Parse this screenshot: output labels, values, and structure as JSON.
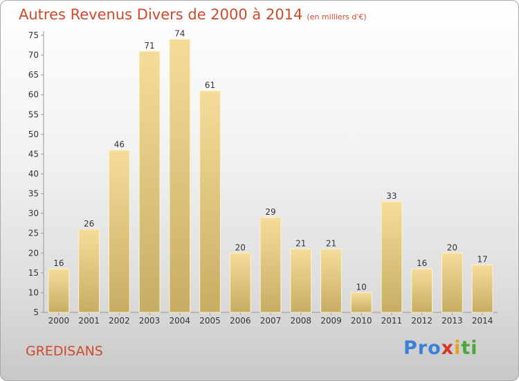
{
  "title": "Autres Revenus Divers de 2000 à 2014",
  "subtitle": "(en milliers d'€)",
  "commune": "GREDISANS",
  "logo": {
    "p1": "Pro",
    "p2": "x",
    "p3": "i",
    "p4": "ti"
  },
  "colors": {
    "title": "#d04a2a",
    "bar_top": "#f5dc9a",
    "bar_bottom": "#c7ad63"
  },
  "chart_data": {
    "type": "bar",
    "categories": [
      "2000",
      "2001",
      "2002",
      "2003",
      "2004",
      "2005",
      "2006",
      "2007",
      "2008",
      "2009",
      "2010",
      "2011",
      "2012",
      "2013",
      "2014"
    ],
    "values": [
      16,
      26,
      46,
      71,
      74,
      61,
      20,
      29,
      21,
      21,
      10,
      33,
      16,
      20,
      17
    ],
    "ylim": [
      5,
      75
    ],
    "yticks": [
      5,
      10,
      15,
      20,
      25,
      30,
      35,
      40,
      45,
      50,
      55,
      60,
      65,
      70,
      75
    ],
    "grid": false
  }
}
